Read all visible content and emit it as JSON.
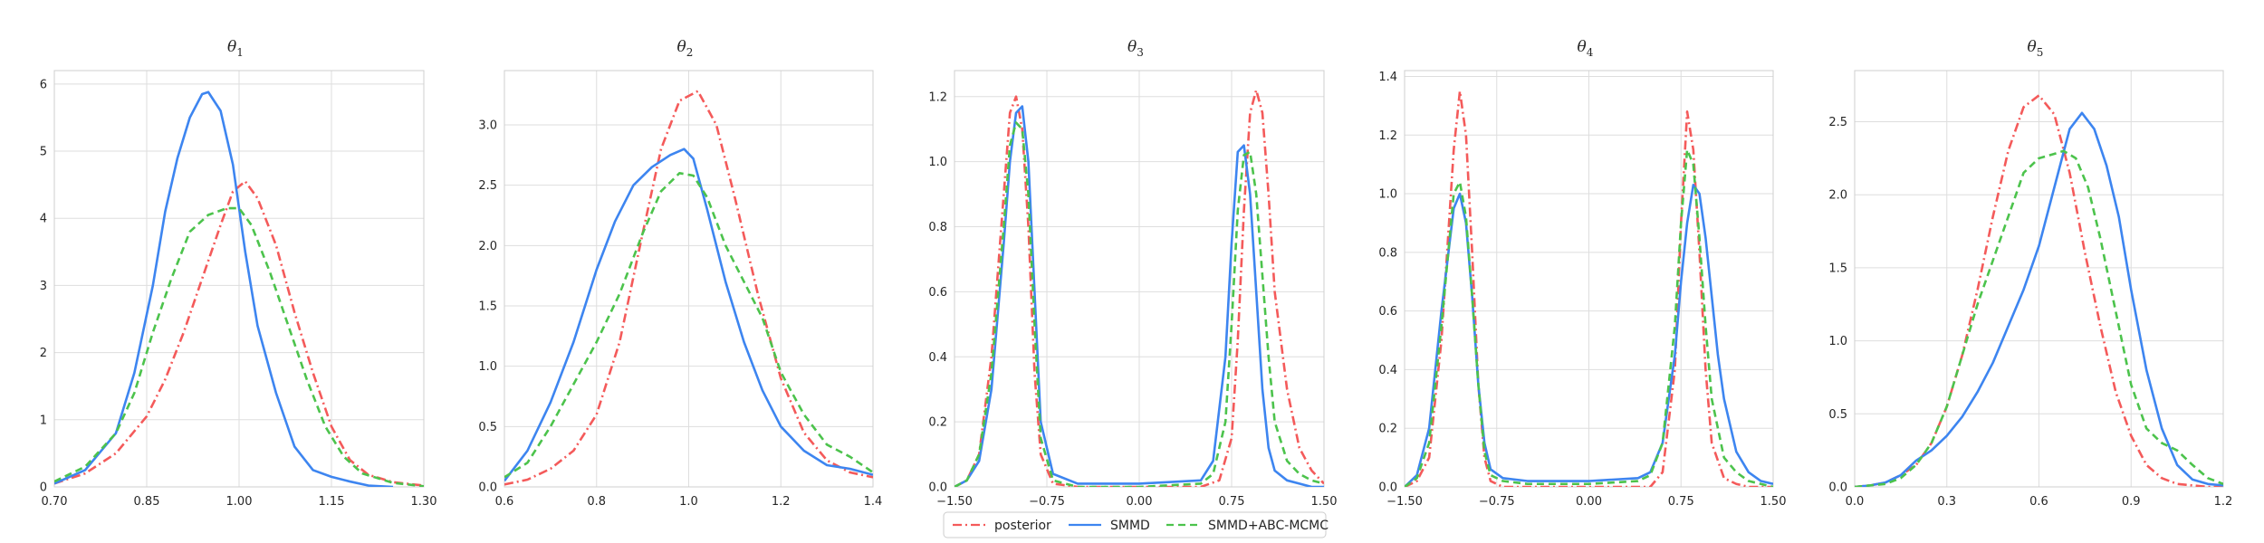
{
  "legend": {
    "entries": [
      {
        "name": "posterior",
        "color": "#f45a5a",
        "dash": "dashdot"
      },
      {
        "name": "SMMD",
        "color": "#3d85f0",
        "dash": "solid"
      },
      {
        "name": "SMMD+ABC-MCMC",
        "color": "#4cc34c",
        "dash": "dashed"
      }
    ]
  },
  "chart_data": [
    {
      "type": "line",
      "title_base": "θ",
      "title_sub": "1",
      "xlim": [
        0.7,
        1.3
      ],
      "ylim": [
        0,
        6.2
      ],
      "xticks": [
        0.7,
        0.85,
        1.0,
        1.15,
        1.3
      ],
      "xtick_labels": [
        "0.70",
        "0.85",
        "1.00",
        "1.15",
        "1.30"
      ],
      "yticks": [
        0,
        1,
        2,
        3,
        4,
        5,
        6
      ],
      "ytick_labels": [
        "0",
        "1",
        "2",
        "3",
        "4",
        "5",
        "6"
      ],
      "grid": true,
      "series": [
        {
          "name": "posterior",
          "x": [
            0.7,
            0.75,
            0.8,
            0.85,
            0.88,
            0.91,
            0.94,
            0.97,
            0.99,
            1.01,
            1.03,
            1.06,
            1.09,
            1.12,
            1.15,
            1.18,
            1.21,
            1.25,
            1.3
          ],
          "y": [
            0.05,
            0.2,
            0.5,
            1.05,
            1.6,
            2.3,
            3.1,
            3.9,
            4.4,
            4.55,
            4.3,
            3.6,
            2.6,
            1.7,
            0.9,
            0.4,
            0.18,
            0.07,
            0.02
          ]
        },
        {
          "name": "SMMD",
          "x": [
            0.7,
            0.75,
            0.8,
            0.83,
            0.86,
            0.88,
            0.9,
            0.92,
            0.94,
            0.95,
            0.97,
            0.99,
            1.01,
            1.03,
            1.06,
            1.09,
            1.12,
            1.15,
            1.18,
            1.21,
            1.25
          ],
          "y": [
            0.05,
            0.25,
            0.8,
            1.7,
            3.0,
            4.1,
            4.9,
            5.5,
            5.85,
            5.88,
            5.6,
            4.8,
            3.5,
            2.4,
            1.4,
            0.6,
            0.25,
            0.15,
            0.08,
            0.02,
            0.0
          ]
        },
        {
          "name": "SMMD+ABC-MCMC",
          "x": [
            0.7,
            0.75,
            0.8,
            0.83,
            0.86,
            0.89,
            0.92,
            0.95,
            0.98,
            1.0,
            1.02,
            1.05,
            1.08,
            1.11,
            1.14,
            1.17,
            1.2,
            1.25,
            1.3
          ],
          "y": [
            0.08,
            0.3,
            0.8,
            1.4,
            2.3,
            3.1,
            3.8,
            4.05,
            4.15,
            4.15,
            3.9,
            3.2,
            2.4,
            1.6,
            0.9,
            0.45,
            0.2,
            0.06,
            0.01
          ]
        }
      ]
    },
    {
      "type": "line",
      "title_base": "θ",
      "title_sub": "2",
      "xlim": [
        0.6,
        1.4
      ],
      "ylim": [
        0,
        3.45
      ],
      "xticks": [
        0.6,
        0.8,
        1.0,
        1.2,
        1.4
      ],
      "xtick_labels": [
        "0.6",
        "0.8",
        "1.0",
        "1.2",
        "1.4"
      ],
      "yticks": [
        0,
        0.5,
        1.0,
        1.5,
        2.0,
        2.5,
        3.0
      ],
      "ytick_labels": [
        "0.0",
        "0.5",
        "1.0",
        "1.5",
        "2.0",
        "2.5",
        "3.0"
      ],
      "grid": true,
      "series": [
        {
          "name": "posterior",
          "x": [
            0.6,
            0.65,
            0.7,
            0.75,
            0.8,
            0.85,
            0.9,
            0.94,
            0.98,
            1.02,
            1.06,
            1.1,
            1.15,
            1.2,
            1.25,
            1.3,
            1.35,
            1.4
          ],
          "y": [
            0.02,
            0.06,
            0.15,
            0.3,
            0.6,
            1.2,
            2.1,
            2.8,
            3.2,
            3.28,
            3.0,
            2.4,
            1.6,
            0.9,
            0.45,
            0.22,
            0.12,
            0.08
          ]
        },
        {
          "name": "SMMD",
          "x": [
            0.6,
            0.65,
            0.7,
            0.75,
            0.8,
            0.84,
            0.88,
            0.92,
            0.96,
            0.99,
            1.01,
            1.04,
            1.08,
            1.12,
            1.16,
            1.2,
            1.25,
            1.3,
            1.35,
            1.4
          ],
          "y": [
            0.05,
            0.3,
            0.7,
            1.2,
            1.8,
            2.2,
            2.5,
            2.65,
            2.75,
            2.8,
            2.72,
            2.3,
            1.7,
            1.2,
            0.8,
            0.5,
            0.3,
            0.18,
            0.15,
            0.1
          ]
        },
        {
          "name": "SMMD+ABC-MCMC",
          "x": [
            0.6,
            0.65,
            0.7,
            0.75,
            0.8,
            0.85,
            0.9,
            0.94,
            0.98,
            1.01,
            1.04,
            1.08,
            1.12,
            1.16,
            1.2,
            1.25,
            1.3,
            1.35,
            1.4
          ],
          "y": [
            0.08,
            0.2,
            0.5,
            0.85,
            1.2,
            1.6,
            2.1,
            2.45,
            2.6,
            2.58,
            2.4,
            2.0,
            1.7,
            1.4,
            0.95,
            0.6,
            0.35,
            0.25,
            0.12
          ]
        }
      ]
    },
    {
      "type": "line",
      "title_base": "θ",
      "title_sub": "3",
      "xlim": [
        -1.5,
        1.5
      ],
      "ylim": [
        0,
        1.28
      ],
      "xticks": [
        -1.5,
        -0.75,
        0.0,
        0.75,
        1.5
      ],
      "xtick_labels": [
        "−1.50",
        "−0.75",
        "0.00",
        "0.75",
        "1.50"
      ],
      "yticks": [
        0,
        0.2,
        0.4,
        0.6,
        0.8,
        1.0,
        1.2
      ],
      "ytick_labels": [
        "0.0",
        "0.2",
        "0.4",
        "0.6",
        "0.8",
        "1.0",
        "1.2"
      ],
      "grid": true,
      "series": [
        {
          "name": "posterior",
          "x": [
            -1.5,
            -1.4,
            -1.3,
            -1.2,
            -1.1,
            -1.05,
            -1.0,
            -0.95,
            -0.9,
            -0.85,
            -0.8,
            -0.7,
            -0.5,
            0.0,
            0.5,
            0.65,
            0.75,
            0.8,
            0.85,
            0.9,
            0.95,
            1.0,
            1.05,
            1.1,
            1.2,
            1.3,
            1.4,
            1.5
          ],
          "y": [
            0.0,
            0.02,
            0.1,
            0.4,
            0.9,
            1.15,
            1.2,
            1.1,
            0.8,
            0.35,
            0.1,
            0.01,
            0.0,
            0.0,
            0.0,
            0.02,
            0.15,
            0.45,
            0.85,
            1.15,
            1.22,
            1.15,
            0.9,
            0.6,
            0.3,
            0.12,
            0.05,
            0.01
          ]
        },
        {
          "name": "SMMD",
          "x": [
            -1.5,
            -1.4,
            -1.3,
            -1.2,
            -1.1,
            -1.05,
            -1.0,
            -0.95,
            -0.9,
            -0.85,
            -0.8,
            -0.7,
            -0.5,
            0.0,
            0.5,
            0.6,
            0.7,
            0.75,
            0.8,
            0.85,
            0.9,
            0.95,
            1.0,
            1.05,
            1.1,
            1.2,
            1.3,
            1.4,
            1.5
          ],
          "y": [
            0.0,
            0.02,
            0.08,
            0.3,
            0.75,
            1.0,
            1.15,
            1.17,
            1.0,
            0.6,
            0.2,
            0.04,
            0.01,
            0.01,
            0.02,
            0.08,
            0.4,
            0.75,
            1.03,
            1.05,
            0.9,
            0.6,
            0.3,
            0.12,
            0.05,
            0.02,
            0.01,
            0.0,
            0.0
          ]
        },
        {
          "name": "SMMD+ABC-MCMC",
          "x": [
            -1.5,
            -1.4,
            -1.3,
            -1.2,
            -1.1,
            -1.05,
            -1.0,
            -0.95,
            -0.9,
            -0.85,
            -0.8,
            -0.7,
            -0.5,
            0.0,
            0.5,
            0.6,
            0.7,
            0.75,
            0.8,
            0.85,
            0.9,
            0.95,
            1.0,
            1.05,
            1.1,
            1.2,
            1.3,
            1.4,
            1.5
          ],
          "y": [
            0.0,
            0.02,
            0.1,
            0.35,
            0.8,
            1.05,
            1.12,
            1.1,
            0.9,
            0.5,
            0.15,
            0.02,
            0.0,
            0.0,
            0.01,
            0.04,
            0.2,
            0.5,
            0.85,
            1.02,
            1.03,
            0.9,
            0.65,
            0.4,
            0.2,
            0.08,
            0.04,
            0.02,
            0.01
          ]
        }
      ]
    },
    {
      "type": "line",
      "title_base": "θ",
      "title_sub": "4",
      "xlim": [
        -1.5,
        1.5
      ],
      "ylim": [
        0,
        1.42
      ],
      "xticks": [
        -1.5,
        -0.75,
        0.0,
        0.75,
        1.5
      ],
      "xtick_labels": [
        "−1.50",
        "−0.75",
        "0.00",
        "0.75",
        "1.50"
      ],
      "yticks": [
        0,
        0.2,
        0.4,
        0.6,
        0.8,
        1.0,
        1.2,
        1.4
      ],
      "ytick_labels": [
        "0.0",
        "0.2",
        "0.4",
        "0.6",
        "0.8",
        "1.0",
        "1.2",
        "1.4"
      ],
      "grid": true,
      "series": [
        {
          "name": "posterior",
          "x": [
            -1.5,
            -1.4,
            -1.3,
            -1.2,
            -1.1,
            -1.05,
            -1.0,
            -0.95,
            -0.9,
            -0.85,
            -0.8,
            -0.7,
            -0.5,
            0.0,
            0.5,
            0.6,
            0.7,
            0.75,
            0.8,
            0.85,
            0.9,
            0.95,
            1.0,
            1.1,
            1.2,
            1.3,
            1.4,
            1.5
          ],
          "y": [
            0.0,
            0.02,
            0.1,
            0.5,
            1.15,
            1.35,
            1.2,
            0.8,
            0.35,
            0.1,
            0.02,
            0.0,
            0.0,
            0.0,
            0.0,
            0.05,
            0.4,
            0.9,
            1.28,
            1.15,
            0.8,
            0.4,
            0.15,
            0.03,
            0.01,
            0.0,
            0.0,
            0.0
          ]
        },
        {
          "name": "SMMD",
          "x": [
            -1.5,
            -1.4,
            -1.3,
            -1.2,
            -1.1,
            -1.05,
            -1.0,
            -0.95,
            -0.9,
            -0.85,
            -0.8,
            -0.7,
            -0.5,
            0.0,
            0.4,
            0.5,
            0.6,
            0.7,
            0.75,
            0.8,
            0.85,
            0.9,
            0.95,
            1.0,
            1.05,
            1.1,
            1.2,
            1.3,
            1.4,
            1.5
          ],
          "y": [
            0.0,
            0.04,
            0.2,
            0.6,
            0.95,
            1.0,
            0.9,
            0.65,
            0.35,
            0.15,
            0.06,
            0.03,
            0.02,
            0.02,
            0.03,
            0.05,
            0.15,
            0.45,
            0.7,
            0.9,
            1.03,
            1.0,
            0.85,
            0.65,
            0.45,
            0.3,
            0.12,
            0.05,
            0.02,
            0.01
          ]
        },
        {
          "name": "SMMD+ABC-MCMC",
          "x": [
            -1.5,
            -1.4,
            -1.3,
            -1.2,
            -1.1,
            -1.05,
            -1.0,
            -0.95,
            -0.9,
            -0.85,
            -0.8,
            -0.7,
            -0.5,
            0.0,
            0.4,
            0.5,
            0.6,
            0.7,
            0.75,
            0.8,
            0.85,
            0.9,
            0.95,
            1.0,
            1.1,
            1.2,
            1.3,
            1.4,
            1.5
          ],
          "y": [
            0.0,
            0.03,
            0.15,
            0.55,
            1.0,
            1.04,
            0.92,
            0.65,
            0.35,
            0.12,
            0.04,
            0.02,
            0.01,
            0.01,
            0.02,
            0.04,
            0.15,
            0.55,
            0.9,
            1.15,
            1.1,
            0.85,
            0.55,
            0.3,
            0.1,
            0.05,
            0.02,
            0.01,
            0.0
          ]
        }
      ]
    },
    {
      "type": "line",
      "title_base": "θ",
      "title_sub": "5",
      "xlim": [
        0.0,
        1.2
      ],
      "ylim": [
        0,
        2.85
      ],
      "xticks": [
        0.0,
        0.3,
        0.6,
        0.9,
        1.2
      ],
      "xtick_labels": [
        "0.0",
        "0.3",
        "0.6",
        "0.9",
        "1.2"
      ],
      "yticks": [
        0,
        0.5,
        1.0,
        1.5,
        2.0,
        2.5
      ],
      "ytick_labels": [
        "0.0",
        "0.5",
        "1.0",
        "1.5",
        "2.0",
        "2.5"
      ],
      "grid": true,
      "series": [
        {
          "name": "posterior",
          "x": [
            0.0,
            0.05,
            0.1,
            0.15,
            0.2,
            0.25,
            0.3,
            0.35,
            0.4,
            0.45,
            0.5,
            0.55,
            0.6,
            0.65,
            0.7,
            0.75,
            0.8,
            0.85,
            0.9,
            0.95,
            1.0,
            1.05,
            1.1,
            1.15,
            1.2
          ],
          "y": [
            0.0,
            0.01,
            0.03,
            0.08,
            0.15,
            0.3,
            0.55,
            0.9,
            1.35,
            1.85,
            2.3,
            2.6,
            2.68,
            2.55,
            2.15,
            1.6,
            1.1,
            0.65,
            0.35,
            0.15,
            0.06,
            0.02,
            0.01,
            0.0,
            0.0
          ]
        },
        {
          "name": "SMMD",
          "x": [
            0.0,
            0.05,
            0.1,
            0.15,
            0.2,
            0.25,
            0.3,
            0.35,
            0.4,
            0.45,
            0.5,
            0.55,
            0.6,
            0.65,
            0.7,
            0.74,
            0.78,
            0.82,
            0.86,
            0.9,
            0.95,
            1.0,
            1.05,
            1.1,
            1.15,
            1.2
          ],
          "y": [
            0.0,
            0.01,
            0.03,
            0.08,
            0.18,
            0.25,
            0.35,
            0.48,
            0.65,
            0.85,
            1.1,
            1.35,
            1.65,
            2.05,
            2.45,
            2.56,
            2.45,
            2.2,
            1.85,
            1.35,
            0.8,
            0.4,
            0.15,
            0.05,
            0.02,
            0.01
          ]
        },
        {
          "name": "SMMD+ABC-MCMC",
          "x": [
            0.0,
            0.05,
            0.1,
            0.15,
            0.2,
            0.25,
            0.3,
            0.35,
            0.4,
            0.45,
            0.5,
            0.55,
            0.6,
            0.65,
            0.68,
            0.72,
            0.76,
            0.8,
            0.85,
            0.9,
            0.95,
            1.0,
            1.05,
            1.1,
            1.15,
            1.2
          ],
          "y": [
            0.0,
            0.01,
            0.02,
            0.06,
            0.15,
            0.3,
            0.55,
            0.9,
            1.25,
            1.55,
            1.85,
            2.15,
            2.25,
            2.28,
            2.3,
            2.25,
            2.05,
            1.7,
            1.2,
            0.7,
            0.4,
            0.3,
            0.25,
            0.15,
            0.06,
            0.02
          ]
        }
      ]
    }
  ]
}
